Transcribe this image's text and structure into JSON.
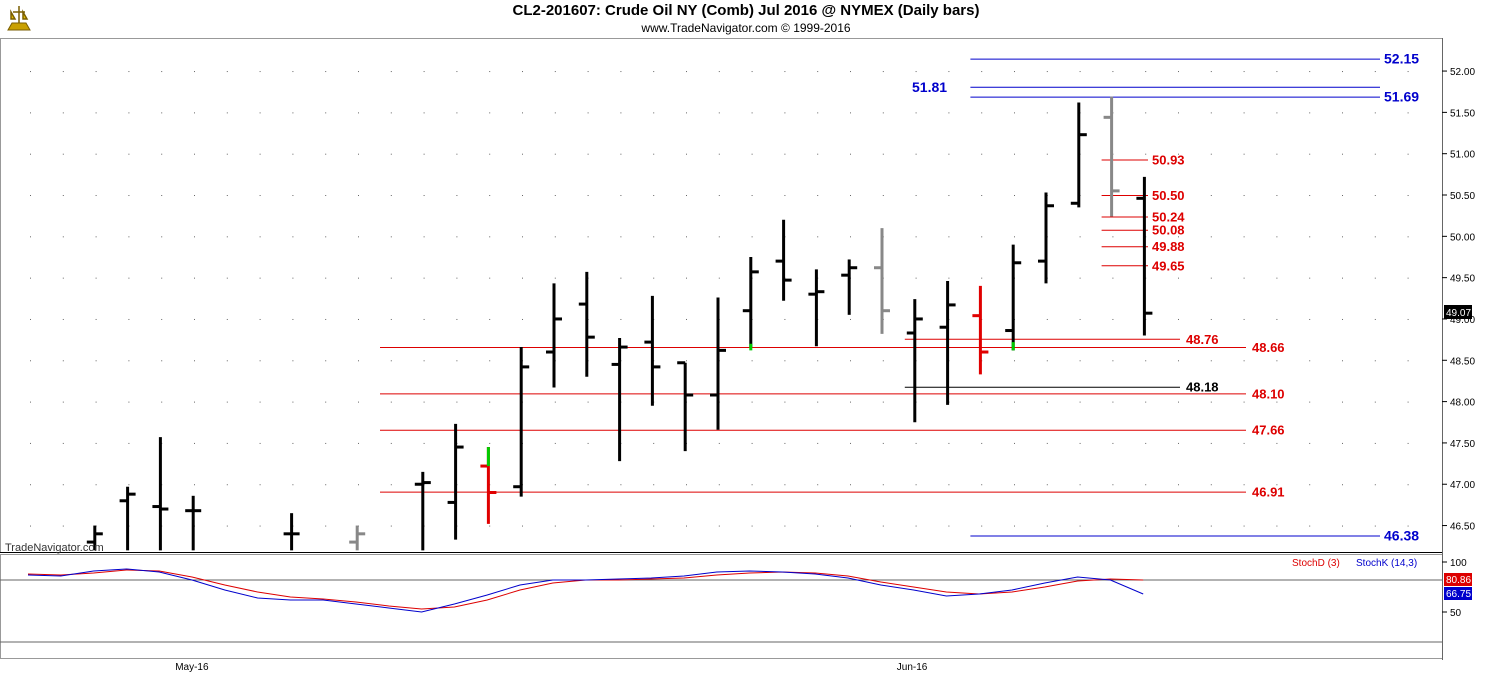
{
  "header": {
    "title": "CL2-201607:  Crude Oil NY (Comb) Jul 2016 @ NYMEX  (Daily bars)",
    "subtitle": "www.TradeNavigator.com © 1999-2016"
  },
  "watermark": "TradeNavigator.com",
  "colors": {
    "up": "#000000",
    "down": "#000000",
    "gray": "#888888",
    "red": "#e00000",
    "green": "#00cc00",
    "blue": "#0000cc",
    "redline": "#dd0000"
  },
  "chart_data": {
    "type": "ohlc",
    "y_axis": {
      "min": 46.18,
      "max": 52.4,
      "ticks": [
        "46.50",
        "47.00",
        "47.50",
        "48.00",
        "48.50",
        "49.00",
        "49.50",
        "50.00",
        "50.50",
        "51.00",
        "51.50",
        "52.00"
      ]
    },
    "x_labels": [
      {
        "label": "May-16",
        "index": 4
      },
      {
        "label": "Jun-16",
        "index": 26
      }
    ],
    "last_price": "49.07",
    "bars": [
      {
        "i": 1,
        "o": 46.3,
        "h": 46.5,
        "l": 46.2,
        "c": 46.4,
        "color": "black"
      },
      {
        "i": 2,
        "o": 46.8,
        "h": 46.97,
        "l": 46.2,
        "c": 46.88,
        "color": "black"
      },
      {
        "i": 3,
        "o": 46.73,
        "h": 47.57,
        "l": 46.2,
        "c": 46.7,
        "color": "black"
      },
      {
        "i": 4,
        "o": 46.68,
        "h": 46.86,
        "l": 46.2,
        "c": 46.68,
        "color": "black"
      },
      {
        "i": 7,
        "o": 46.4,
        "h": 46.65,
        "l": 46.2,
        "c": 46.4,
        "color": "black"
      },
      {
        "i": 9,
        "o": 46.3,
        "h": 46.5,
        "l": 46.2,
        "c": 46.4,
        "color": "gray"
      },
      {
        "i": 11,
        "o": 47.0,
        "h": 47.15,
        "l": 46.2,
        "c": 47.02,
        "color": "black"
      },
      {
        "i": 12,
        "o": 46.78,
        "h": 47.73,
        "l": 46.33,
        "c": 47.45,
        "color": "black"
      },
      {
        "i": 13,
        "o": 47.22,
        "h": 47.45,
        "l": 46.52,
        "c": 46.9,
        "color": "red"
      },
      {
        "i": 14,
        "o": 46.97,
        "h": 48.66,
        "l": 46.85,
        "c": 48.42,
        "color": "black"
      },
      {
        "i": 15,
        "o": 48.6,
        "h": 49.43,
        "l": 48.17,
        "c": 49.0,
        "color": "black"
      },
      {
        "i": 16,
        "o": 49.18,
        "h": 49.57,
        "l": 48.3,
        "c": 48.78,
        "color": "black"
      },
      {
        "i": 17,
        "o": 48.45,
        "h": 48.77,
        "l": 47.28,
        "c": 48.66,
        "color": "black"
      },
      {
        "i": 18,
        "o": 48.72,
        "h": 49.28,
        "l": 47.95,
        "c": 48.42,
        "color": "black"
      },
      {
        "i": 19,
        "o": 48.47,
        "h": 48.47,
        "l": 47.4,
        "c": 48.08,
        "color": "black"
      },
      {
        "i": 20,
        "o": 48.08,
        "h": 49.26,
        "l": 47.66,
        "c": 48.62,
        "color": "black"
      },
      {
        "i": 21,
        "o": 49.1,
        "h": 49.75,
        "l": 48.66,
        "c": 49.57,
        "color": "black"
      },
      {
        "i": 22,
        "o": 49.7,
        "h": 50.2,
        "l": 49.22,
        "c": 49.47,
        "color": "black"
      },
      {
        "i": 23,
        "o": 49.3,
        "h": 49.6,
        "l": 48.67,
        "c": 49.33,
        "color": "black"
      },
      {
        "i": 24,
        "o": 49.53,
        "h": 49.72,
        "l": 49.05,
        "c": 49.62,
        "color": "black"
      },
      {
        "i": 25,
        "o": 49.62,
        "h": 50.1,
        "l": 48.82,
        "c": 49.1,
        "color": "gray"
      },
      {
        "i": 26,
        "o": 48.83,
        "h": 49.24,
        "l": 47.75,
        "c": 49.0,
        "color": "black"
      },
      {
        "i": 27,
        "o": 48.9,
        "h": 49.46,
        "l": 47.96,
        "c": 49.17,
        "color": "black"
      },
      {
        "i": 28,
        "o": 49.04,
        "h": 49.4,
        "l": 48.33,
        "c": 48.6,
        "color": "red"
      },
      {
        "i": 29,
        "o": 48.86,
        "h": 49.9,
        "l": 48.62,
        "c": 49.68,
        "color": "black"
      },
      {
        "i": 30,
        "o": 49.7,
        "h": 50.53,
        "l": 49.43,
        "c": 50.37,
        "color": "black"
      },
      {
        "i": 31,
        "o": 50.4,
        "h": 51.62,
        "l": 50.35,
        "c": 51.23,
        "color": "black"
      },
      {
        "i": 32,
        "o": 51.44,
        "h": 51.69,
        "l": 50.24,
        "c": 50.55,
        "color": "gray"
      },
      {
        "i": 33,
        "o": 50.46,
        "h": 50.72,
        "l": 48.8,
        "c": 49.07,
        "color": "black"
      }
    ],
    "green_marks": [
      {
        "i": 13,
        "from": 47.22,
        "to": 47.45
      },
      {
        "i": 21,
        "from": 48.62,
        "to": 48.7
      },
      {
        "i": 29,
        "from": 48.62,
        "to": 48.72
      }
    ],
    "levels": [
      {
        "label": "52.15",
        "value": 52.15,
        "color": "blue",
        "from_i": 28,
        "label_pos": "right"
      },
      {
        "label": "51.81",
        "value": 51.81,
        "color": "blue",
        "from_i": 28,
        "label_pos": "left"
      },
      {
        "label": "51.69",
        "value": 51.69,
        "color": "blue",
        "from_i": 28,
        "label_pos": "right"
      },
      {
        "label": "50.93",
        "value": 50.93,
        "color": "red",
        "from_i": 32,
        "label_pos": "mid"
      },
      {
        "label": "50.50",
        "value": 50.5,
        "color": "red",
        "from_i": 32,
        "label_pos": "mid"
      },
      {
        "label": "50.24",
        "value": 50.24,
        "color": "red",
        "from_i": 32,
        "label_pos": "mid"
      },
      {
        "label": "50.08",
        "value": 50.08,
        "color": "red",
        "from_i": 32,
        "label_pos": "mid"
      },
      {
        "label": "49.88",
        "value": 49.88,
        "color": "red",
        "from_i": 32,
        "label_pos": "mid"
      },
      {
        "label": "49.65",
        "value": 49.65,
        "color": "red",
        "from_i": 32,
        "label_pos": "mid"
      },
      {
        "label": "48.76",
        "value": 48.76,
        "color": "red",
        "from_i": 26,
        "label_pos": "mid2"
      },
      {
        "label": "48.66",
        "value": 48.66,
        "color": "red",
        "from_i": 10,
        "label_pos": "right"
      },
      {
        "label": "48.18",
        "value": 48.18,
        "color": "black",
        "from_i": 26,
        "label_pos": "mid2"
      },
      {
        "label": "48.10",
        "value": 48.1,
        "color": "red",
        "from_i": 10,
        "label_pos": "right"
      },
      {
        "label": "47.66",
        "value": 47.66,
        "color": "red",
        "from_i": 10,
        "label_pos": "right"
      },
      {
        "label": "46.91",
        "value": 46.91,
        "color": "red",
        "from_i": 10,
        "label_pos": "right"
      },
      {
        "label": "46.38",
        "value": 46.38,
        "color": "blue",
        "from_i": 28,
        "label_pos": "right"
      }
    ],
    "oscillator": {
      "y_ticks": [
        "100",
        "50"
      ],
      "legend": [
        {
          "label": "StochD (3)",
          "color": "red"
        },
        {
          "label": "StochK (14,3)",
          "color": "blue"
        }
      ],
      "last_d": "80.86",
      "last_k": "66.75",
      "ref_line": 80,
      "k_values": [
        [
          0,
          85
        ],
        [
          1,
          84
        ],
        [
          2,
          89
        ],
        [
          3,
          91
        ],
        [
          4,
          88
        ],
        [
          5,
          80
        ],
        [
          6,
          70
        ],
        [
          7,
          62
        ],
        [
          8,
          60
        ],
        [
          9,
          60
        ],
        [
          10,
          56
        ],
        [
          11,
          52
        ],
        [
          12,
          48
        ],
        [
          13,
          56
        ],
        [
          14,
          65
        ],
        [
          15,
          75
        ],
        [
          16,
          80
        ],
        [
          17,
          80
        ],
        [
          18,
          81
        ],
        [
          19,
          82
        ],
        [
          20,
          84
        ],
        [
          21,
          88
        ],
        [
          22,
          89
        ],
        [
          23,
          88
        ],
        [
          24,
          86
        ],
        [
          25,
          82
        ],
        [
          26,
          75
        ],
        [
          27,
          70
        ],
        [
          28,
          64
        ],
        [
          29,
          66
        ],
        [
          30,
          70
        ],
        [
          31,
          77
        ],
        [
          32,
          83
        ],
        [
          33,
          80
        ],
        [
          34,
          66
        ]
      ],
      "d_values": [
        [
          0,
          86
        ],
        [
          1,
          85
        ],
        [
          2,
          87
        ],
        [
          3,
          90
        ],
        [
          4,
          89
        ],
        [
          5,
          83
        ],
        [
          6,
          75
        ],
        [
          7,
          68
        ],
        [
          8,
          63
        ],
        [
          9,
          61
        ],
        [
          10,
          58
        ],
        [
          11,
          54
        ],
        [
          12,
          51
        ],
        [
          13,
          53
        ],
        [
          14,
          60
        ],
        [
          15,
          70
        ],
        [
          16,
          77
        ],
        [
          17,
          80
        ],
        [
          18,
          80
        ],
        [
          19,
          81
        ],
        [
          20,
          82
        ],
        [
          21,
          85
        ],
        [
          22,
          87
        ],
        [
          23,
          88
        ],
        [
          24,
          87
        ],
        [
          25,
          84
        ],
        [
          26,
          78
        ],
        [
          27,
          73
        ],
        [
          28,
          68
        ],
        [
          29,
          66
        ],
        [
          30,
          68
        ],
        [
          31,
          73
        ],
        [
          32,
          79
        ],
        [
          33,
          81
        ],
        [
          34,
          80
        ]
      ]
    }
  }
}
